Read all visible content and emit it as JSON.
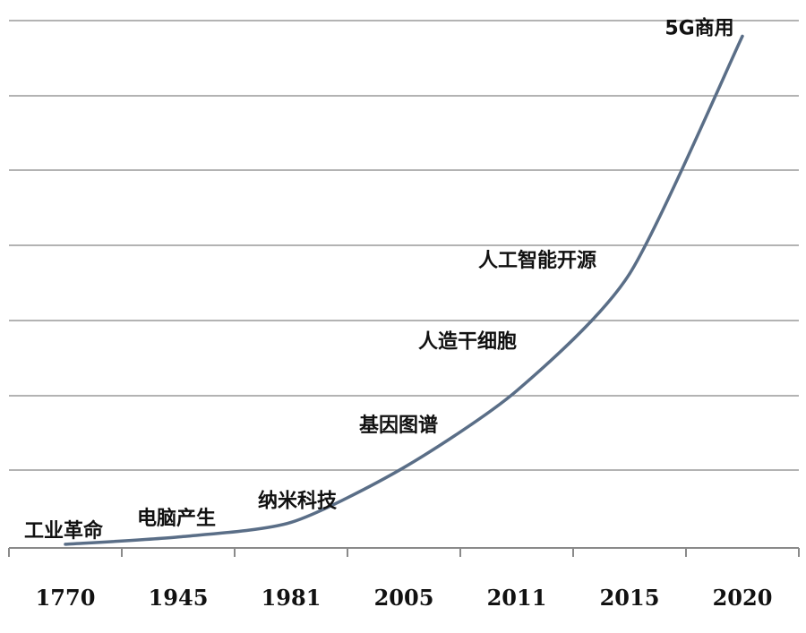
{
  "chart_data": {
    "type": "line",
    "categories": [
      "1770",
      "1945",
      "1981",
      "2005",
      "2011",
      "2015",
      "2020"
    ],
    "series": [
      {
        "values": [
          0.1,
          0.3,
          0.7,
          2.2,
          4.3,
          7.5,
          14.0
        ]
      }
    ],
    "annotations": [
      {
        "text": "工业革命",
        "category": "1770"
      },
      {
        "text": "电脑产生",
        "category": "1945"
      },
      {
        "text": "纳米科技",
        "category": "1981"
      },
      {
        "text": "基因图谱",
        "category": "2005"
      },
      {
        "text": "人造干细胞",
        "category": "2011"
      },
      {
        "text": "人工智能开源",
        "category": "2015"
      },
      {
        "text": "5G商用",
        "category": "2020"
      }
    ],
    "ylim": [
      0,
      14.5
    ],
    "grid": true,
    "line_color": "#5a6e87"
  }
}
